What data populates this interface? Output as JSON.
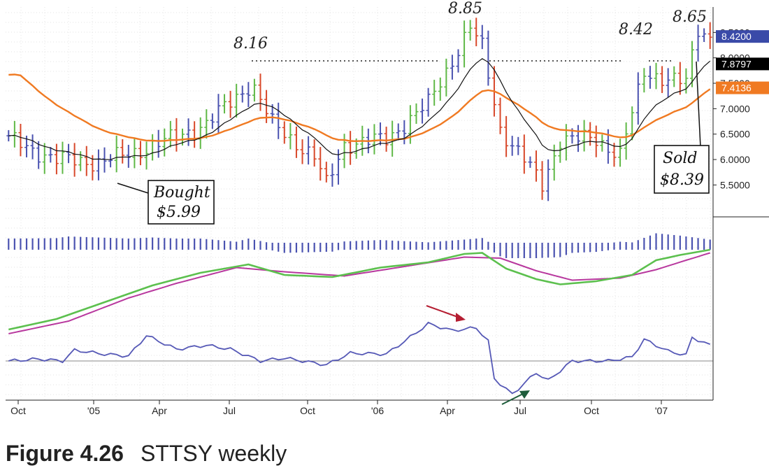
{
  "caption": {
    "figure": "Figure 4.26",
    "title": "STTSY weekly"
  },
  "colors": {
    "up": "#5fb846",
    "down": "#d8482a",
    "neutral": "#4a52b0",
    "ma_fast": "#111111",
    "ma_slow": "#f07a22",
    "macd": "#5cc04e",
    "signal": "#b8389e",
    "hist": "#4a52b0",
    "osc": "#5558b6",
    "arrow_red": "#b51e32",
    "arrow_green": "#1d5c3a"
  },
  "chart_data": {
    "type": "bar",
    "title": "STTSY weekly",
    "x_ticks": [
      "Oct",
      "'05",
      "Apr",
      "Jul",
      "Oct",
      "'06",
      "Apr",
      "Jul",
      "Oct",
      "'07"
    ],
    "price_axis": {
      "ylim": [
        4.9,
        9.0
      ],
      "ticks": [
        "5.5000",
        "6.0000",
        "6.5000",
        "7.0000",
        "7.5000",
        "8.0000",
        "8.5000"
      ]
    },
    "price_tags": [
      {
        "label": "8.4200",
        "value": 8.42,
        "color": "#3a4aa8"
      },
      {
        "label": "7.8797",
        "value": 7.88,
        "color": "#000000"
      },
      {
        "label": "7.4136",
        "value": 7.41,
        "color": "#f07a22"
      }
    ],
    "weeks": 118,
    "price_anchors": [
      [
        0,
        6.4
      ],
      [
        8,
        6.0
      ],
      [
        15,
        5.95
      ],
      [
        20,
        6.1
      ],
      [
        27,
        6.4
      ],
      [
        33,
        6.7
      ],
      [
        40,
        7.45
      ],
      [
        41,
        7.4
      ],
      [
        44,
        6.7
      ],
      [
        51,
        6.05
      ],
      [
        53,
        5.5
      ],
      [
        56,
        6.3
      ],
      [
        63,
        6.4
      ],
      [
        70,
        7.1
      ],
      [
        77,
        8.6
      ],
      [
        79,
        8.2
      ],
      [
        82,
        6.6
      ],
      [
        86,
        6.0
      ],
      [
        89,
        5.5
      ],
      [
        92,
        6.4
      ],
      [
        98,
        6.4
      ],
      [
        102,
        6.1
      ],
      [
        106,
        7.7
      ],
      [
        110,
        7.6
      ],
      [
        113,
        7.5
      ],
      [
        115,
        8.55
      ],
      [
        117,
        8.42
      ]
    ],
    "annotations": [
      {
        "label": "8.16",
        "value": 8.16
      },
      {
        "label": "8.85",
        "value": 8.85
      },
      {
        "label": "8.42",
        "value": 8.42
      },
      {
        "label": "8.65",
        "value": 8.65
      }
    ],
    "trades": [
      {
        "line1": "Bought",
        "line2": "$5.99"
      },
      {
        "line1": "Sold",
        "line2": "$8.39"
      }
    ],
    "series": [
      {
        "name": "weekly price bars",
        "panel": "price"
      },
      {
        "name": "fast moving average",
        "panel": "price",
        "last": 7.8797
      },
      {
        "name": "slow moving average",
        "panel": "price",
        "last": 7.4136
      },
      {
        "name": "MACD",
        "panel": "middle"
      },
      {
        "name": "signal",
        "panel": "middle"
      },
      {
        "name": "histogram",
        "panel": "middle"
      },
      {
        "name": "oscillator",
        "panel": "bottom"
      }
    ],
    "osc_anchors": [
      [
        0,
        0.0
      ],
      [
        5,
        0.1
      ],
      [
        9,
        0.0
      ],
      [
        11,
        0.55
      ],
      [
        16,
        0.35
      ],
      [
        20,
        0.25
      ],
      [
        23,
        1.3
      ],
      [
        28,
        0.6
      ],
      [
        33,
        0.8
      ],
      [
        37,
        0.6
      ],
      [
        42,
        0.0
      ],
      [
        46,
        0.15
      ],
      [
        53,
        -0.2
      ],
      [
        57,
        0.4
      ],
      [
        63,
        0.35
      ],
      [
        66,
        1.0
      ],
      [
        70,
        1.9
      ],
      [
        74,
        1.55
      ],
      [
        78,
        1.7
      ],
      [
        80,
        1.0
      ],
      [
        81,
        -0.9
      ],
      [
        84,
        -1.7
      ],
      [
        88,
        -0.6
      ],
      [
        90,
        -1.0
      ],
      [
        94,
        0.0
      ],
      [
        100,
        0.0
      ],
      [
        104,
        0.2
      ],
      [
        106,
        1.1
      ],
      [
        110,
        0.5
      ],
      [
        113,
        0.3
      ],
      [
        114,
        1.2
      ],
      [
        117,
        0.8
      ]
    ],
    "macd_anchors": [
      [
        0,
        -3.1
      ],
      [
        8,
        -2.6
      ],
      [
        16,
        -1.8
      ],
      [
        24,
        -1.0
      ],
      [
        32,
        -0.4
      ],
      [
        40,
        0.0
      ],
      [
        46,
        -0.5
      ],
      [
        54,
        -0.6
      ],
      [
        62,
        -0.15
      ],
      [
        70,
        0.1
      ],
      [
        76,
        0.5
      ],
      [
        79,
        0.55
      ],
      [
        83,
        -0.2
      ],
      [
        88,
        -0.7
      ],
      [
        92,
        -0.95
      ],
      [
        98,
        -0.8
      ],
      [
        104,
        -0.5
      ],
      [
        108,
        0.2
      ],
      [
        112,
        0.45
      ],
      [
        117,
        0.7
      ]
    ],
    "signal_anchors": [
      [
        0,
        -3.3
      ],
      [
        10,
        -2.7
      ],
      [
        20,
        -1.6
      ],
      [
        28,
        -0.9
      ],
      [
        38,
        -0.15
      ],
      [
        46,
        -0.35
      ],
      [
        56,
        -0.55
      ],
      [
        66,
        -0.1
      ],
      [
        76,
        0.35
      ],
      [
        82,
        0.3
      ],
      [
        88,
        -0.3
      ],
      [
        94,
        -0.75
      ],
      [
        102,
        -0.65
      ],
      [
        108,
        -0.25
      ],
      [
        113,
        0.2
      ],
      [
        117,
        0.55
      ]
    ]
  }
}
